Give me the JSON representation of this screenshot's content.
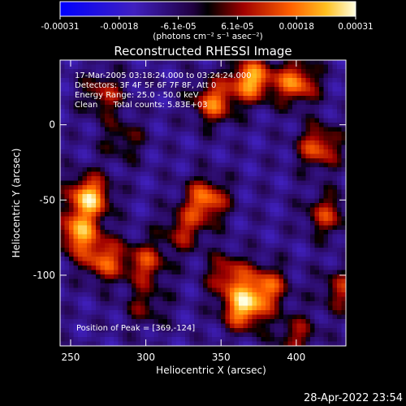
{
  "chart_data": {
    "type": "heatmap",
    "title": "Reconstructed RHESSI Image",
    "xlabel": "Heliocentric X (arcsec)",
    "ylabel": "Heliocentric Y (arcsec)",
    "xlim": [
      243,
      433
    ],
    "ylim": [
      -147,
      43
    ],
    "x_ticks": [
      250,
      300,
      350,
      400
    ],
    "y_ticks": [
      0,
      -50,
      -100
    ],
    "colorbar": {
      "label": "(photons cm⁻² s⁻¹ asec⁻²)",
      "range": [
        -0.00031,
        0.00031
      ],
      "tick_labels": [
        "-0.00031",
        "-0.00018",
        "-6.1e-05",
        "6.1e-05",
        "0.00018",
        "0.00031"
      ]
    },
    "info_lines": [
      "17-Mar-2005 03:18:24.000 to 03:24:24.000",
      "Detectors: 3F 4F 5F 6F 7F 8F, Att 0",
      "Energy Range: 25.0 - 50.0 keV",
      "Clean      Total counts: 5.83E+03"
    ],
    "peak_label": "Position of Peak = [369,-124]",
    "blobs": [
      {
        "x": 262,
        "y": -48,
        "amp": 1.0
      },
      {
        "x": 255,
        "y": -72,
        "amp": 0.85
      },
      {
        "x": 272,
        "y": -90,
        "amp": 0.7
      },
      {
        "x": 300,
        "y": -92,
        "amp": 0.6
      },
      {
        "x": 272,
        "y": 20,
        "amp": 0.5
      },
      {
        "x": 285,
        "y": -10,
        "amp": 0.35
      },
      {
        "x": 340,
        "y": -50,
        "amp": 0.8
      },
      {
        "x": 325,
        "y": -70,
        "amp": 0.5
      },
      {
        "x": 345,
        "y": 15,
        "amp": 0.75
      },
      {
        "x": 370,
        "y": 30,
        "amp": 0.95
      },
      {
        "x": 400,
        "y": 28,
        "amp": 0.8
      },
      {
        "x": 415,
        "y": -15,
        "amp": 0.7
      },
      {
        "x": 420,
        "y": -60,
        "amp": 0.55
      },
      {
        "x": 365,
        "y": -122,
        "amp": 0.95
      },
      {
        "x": 380,
        "y": -108,
        "amp": 0.7
      },
      {
        "x": 355,
        "y": -100,
        "amp": 0.6
      },
      {
        "x": 400,
        "y": -140,
        "amp": 0.45
      },
      {
        "x": 430,
        "y": -110,
        "amp": 0.5
      },
      {
        "x": 300,
        "y": -120,
        "amp": 0.35
      }
    ]
  },
  "footer": {
    "timestamp": "28-Apr-2022 23:54"
  }
}
